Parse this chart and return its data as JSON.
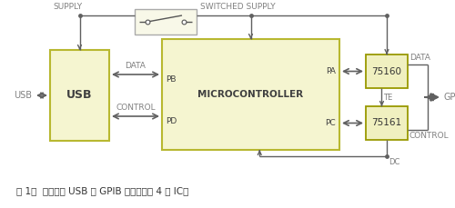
{
  "fig_width": 5.0,
  "fig_height": 2.29,
  "dpi": 100,
  "bg_color": "#ffffff",
  "box_fill": "#f5f5d0",
  "box_edge": "#b8b830",
  "ic_fill": "#f0f0c0",
  "ic_edge": "#999900",
  "line_color": "#606060",
  "text_color": "#404040",
  "label_color": "#808080",
  "caption": "图 1，  这种基于 USB 的 GPIB 控制器只需 4 块 IC。",
  "caption_fontsize": 7.5,
  "supply_label": "SUPPLY",
  "switched_supply_label": "SWITCHED SUPPLY",
  "usb_label": "USB",
  "usb_left_label": "USB",
  "mc_label": "MICROCONTROLLER",
  "ic1_label": "75160",
  "ic2_label": "75161",
  "gpib_label": "GPIB",
  "data_label": "DATA",
  "data_label2": "DATA",
  "control_label": "CONTROL",
  "control_label2": "CONTROL",
  "pb_label": "PB",
  "pa_label": "PA",
  "pd_label": "PD",
  "pc_label": "PC",
  "te_label": "TE",
  "dc_label": "DC"
}
